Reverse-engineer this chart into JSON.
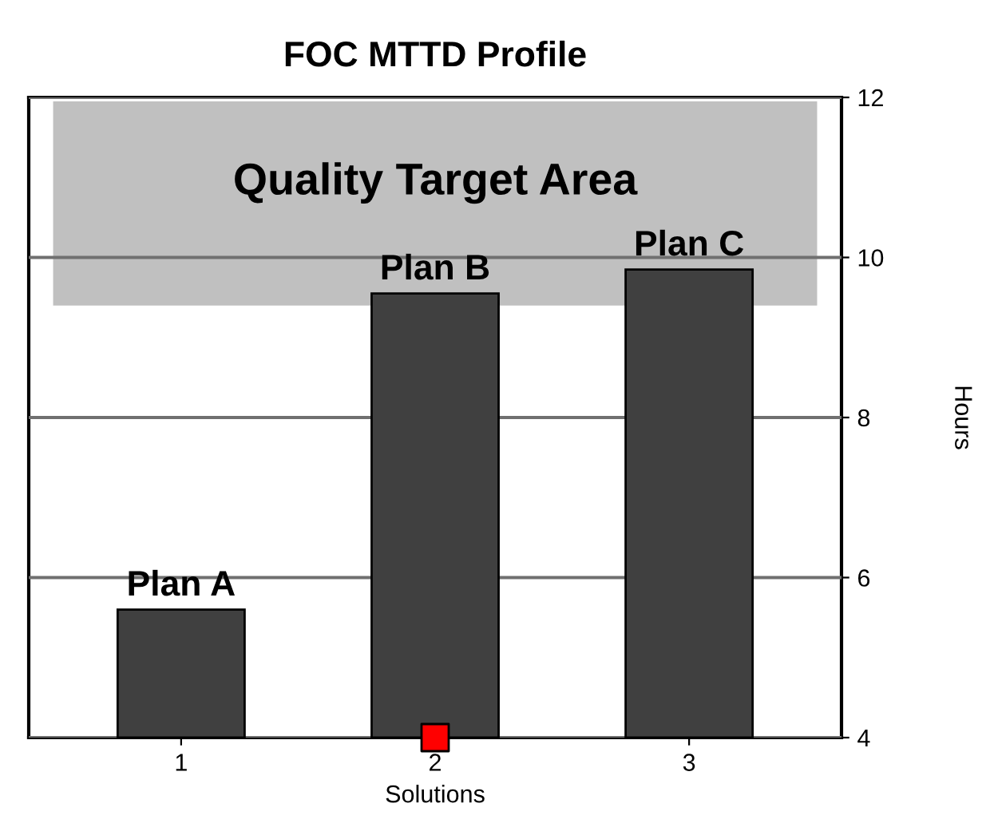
{
  "chart_data": {
    "type": "bar",
    "title": "FOC MTTD Profile",
    "xlabel": "Solutions",
    "ylabel": "Hours",
    "categories": [
      "1",
      "2",
      "3"
    ],
    "series": [
      {
        "color": "#404040",
        "values": [
          5.6,
          9.55,
          9.85
        ]
      },
      {
        "type": "scatter",
        "x": [
          "2"
        ],
        "color": "#ff0000",
        "values": [
          4
        ],
        "marker": "square"
      }
    ],
    "ylim": [
      4,
      12
    ],
    "yticks": [
      4,
      6,
      8,
      10,
      12
    ],
    "grid": "y",
    "bands": [
      {
        "axis": "y",
        "from": 9.4,
        "to": 11.95,
        "label": "Quality Target Area",
        "color": "#c0c0c0"
      }
    ],
    "annotations": [
      {
        "text": "Plan A",
        "x": "1",
        "y": 5.6
      },
      {
        "text": "Plan B",
        "x": "2",
        "y": 9.55
      },
      {
        "text": "Plan C",
        "x": "3",
        "y": 9.85
      }
    ]
  }
}
